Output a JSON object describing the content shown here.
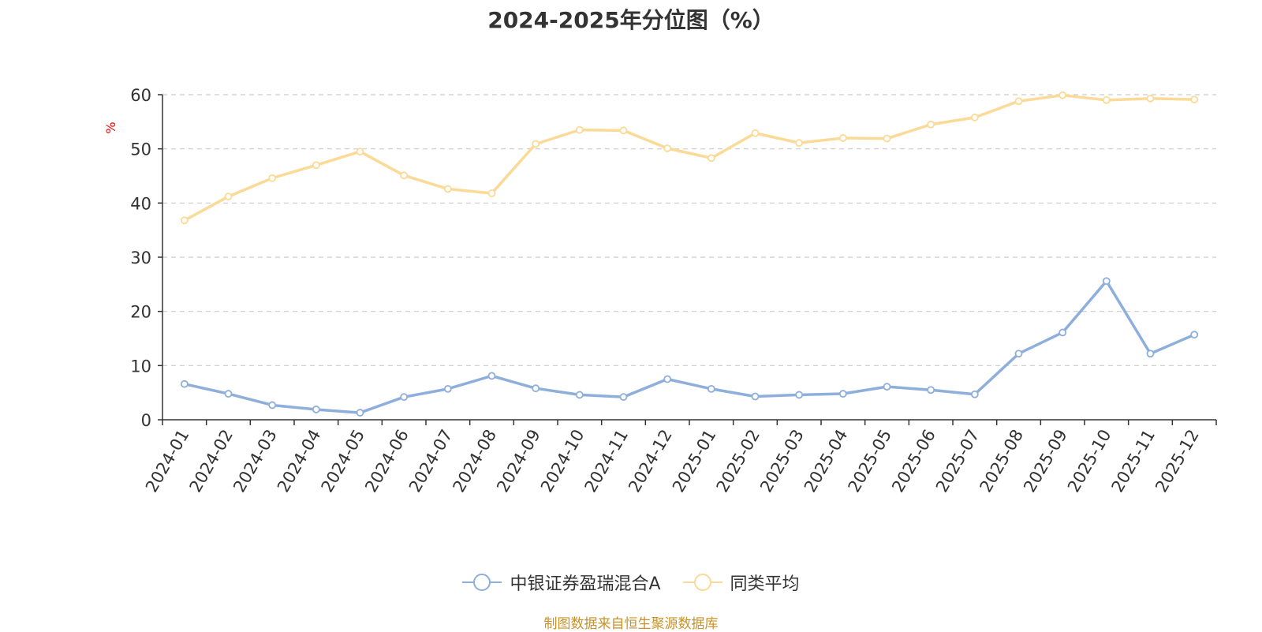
{
  "chart_data": {
    "type": "line",
    "title": "2024-2025年分位图（%）",
    "xlabel": "",
    "ylabel": "%",
    "ylim": [
      0,
      60
    ],
    "yticks": [
      0,
      10,
      20,
      30,
      40,
      50,
      60
    ],
    "grid": true,
    "legend_position": "bottom-center",
    "categories": [
      "2024-01",
      "2024-02",
      "2024-03",
      "2024-04",
      "2024-05",
      "2024-06",
      "2024-07",
      "2024-08",
      "2024-09",
      "2024-10",
      "2024-11",
      "2024-12",
      "2025-01",
      "2025-02",
      "2025-03",
      "2025-04",
      "2025-05",
      "2025-06",
      "2025-07",
      "2025-08",
      "2025-09",
      "2025-10",
      "2025-11",
      "2025-12"
    ],
    "series": [
      {
        "name": "中银证券盈瑞混合A",
        "color": "#8eaedb",
        "values": [
          6.6,
          4.8,
          2.7,
          1.9,
          1.3,
          4.2,
          5.7,
          8.1,
          5.8,
          4.6,
          4.2,
          7.5,
          5.7,
          4.3,
          4.6,
          4.8,
          6.1,
          5.5,
          4.7,
          12.2,
          16.1,
          25.6,
          12.2,
          15.7
        ]
      },
      {
        "name": "同类平均",
        "color": "#fbd996",
        "values": [
          36.8,
          41.2,
          44.6,
          47.0,
          49.5,
          45.1,
          42.6,
          41.8,
          50.9,
          53.5,
          53.4,
          50.1,
          48.3,
          52.9,
          51.1,
          52.0,
          51.9,
          54.5,
          55.8,
          58.8,
          59.9,
          59.0,
          59.3,
          59.1
        ]
      }
    ]
  },
  "source_note": "制图数据来自恒生聚源数据库"
}
